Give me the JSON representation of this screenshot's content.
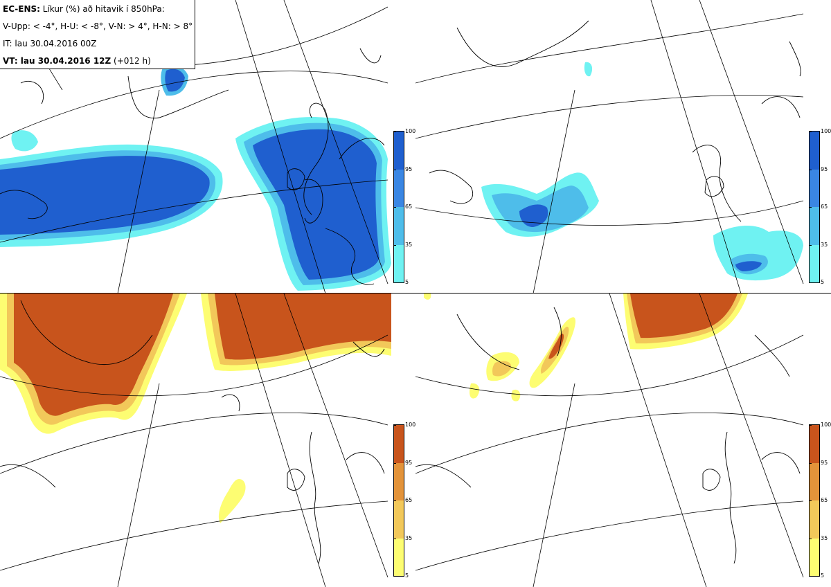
{
  "header": {
    "model": "EC-ENS:",
    "title": "Líkur (%) að hitavik í 850hPa:",
    "legend": "V-Upp: < -4°, H-U: < -8°, V-N: > 4°, H-N: > 8°",
    "init_time": "IT: lau 30.04.2016 00Z",
    "valid_label": "VT: lau 30.04.2016 12Z",
    "lead_time": "(+012 h)"
  },
  "colorbar_cold": {
    "ticks": [
      "100",
      "95",
      "65",
      "35",
      "5"
    ],
    "colors": [
      "#1f5fcf",
      "#3a86e3",
      "#4ebdea",
      "#6ff2f2"
    ]
  },
  "colorbar_warm": {
    "ticks": [
      "100",
      "95",
      "65",
      "35",
      "5"
    ],
    "colors": [
      "#c8541c",
      "#e3933a",
      "#f2c85a",
      "#fdfd72"
    ]
  },
  "panels": [
    {
      "id": "V-Upp",
      "threshold": "< -4°",
      "scale": "cold"
    },
    {
      "id": "H-U",
      "threshold": "< -8°",
      "scale": "cold"
    },
    {
      "id": "V-N",
      "threshold": "> 4°",
      "scale": "warm"
    },
    {
      "id": "H-N",
      "threshold": "> 8°",
      "scale": "warm"
    }
  ]
}
